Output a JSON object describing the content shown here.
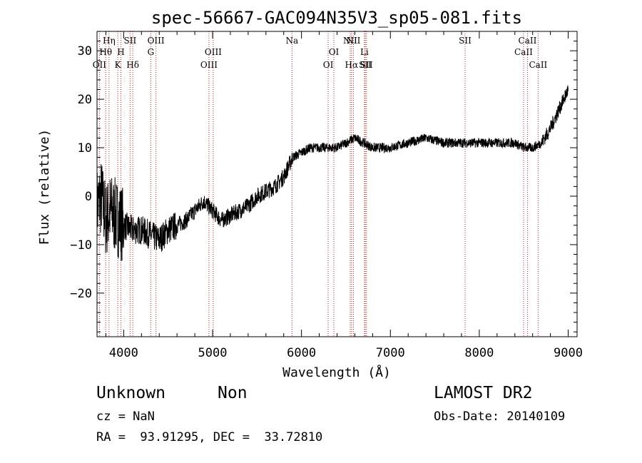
{
  "chart_data": {
    "type": "line",
    "title": "spec-56667-GAC094N35V3_sp05-081.fits",
    "xlabel": "Wavelength (Å)",
    "ylabel": "Flux (relative)",
    "xlim": [
      3700,
      9100
    ],
    "ylim": [
      -29,
      34
    ],
    "x_ticks": [
      4000,
      5000,
      6000,
      7000,
      8000,
      9000
    ],
    "y_ticks": [
      -20,
      -10,
      0,
      10,
      20,
      30
    ],
    "grid": false,
    "series": [
      {
        "color": "#000000",
        "continuum": [
          [
            3700,
            -2
          ],
          [
            3750,
            0
          ],
          [
            3800,
            -5
          ],
          [
            3850,
            -3
          ],
          [
            3900,
            -4
          ],
          [
            3950,
            -5
          ],
          [
            4000,
            -6
          ],
          [
            4100,
            -7
          ],
          [
            4200,
            -7
          ],
          [
            4300,
            -8
          ],
          [
            4400,
            -9
          ],
          [
            4500,
            -7
          ],
          [
            4600,
            -6
          ],
          [
            4700,
            -5
          ],
          [
            4800,
            -3
          ],
          [
            4900,
            -1
          ],
          [
            5000,
            -3
          ],
          [
            5100,
            -5
          ],
          [
            5200,
            -4
          ],
          [
            5300,
            -3
          ],
          [
            5400,
            -2
          ],
          [
            5500,
            0
          ],
          [
            5600,
            1
          ],
          [
            5700,
            2
          ],
          [
            5800,
            4
          ],
          [
            5850,
            6
          ],
          [
            5900,
            8
          ],
          [
            6000,
            9
          ],
          [
            6100,
            10
          ],
          [
            6200,
            10
          ],
          [
            6300,
            10
          ],
          [
            6400,
            10
          ],
          [
            6500,
            11
          ],
          [
            6600,
            12
          ],
          [
            6700,
            11
          ],
          [
            6800,
            10
          ],
          [
            6900,
            10
          ],
          [
            7000,
            10
          ],
          [
            7200,
            11
          ],
          [
            7400,
            12
          ],
          [
            7600,
            11
          ],
          [
            7800,
            11
          ],
          [
            8000,
            11
          ],
          [
            8200,
            11
          ],
          [
            8400,
            11
          ],
          [
            8500,
            10
          ],
          [
            8600,
            10
          ],
          [
            8700,
            11
          ],
          [
            8800,
            14
          ],
          [
            8900,
            18
          ],
          [
            8950,
            20
          ],
          [
            9000,
            22
          ]
        ]
      }
    ],
    "spectral_lines": [
      {
        "name": "OII",
        "wavelength": 3727,
        "row": 2
      },
      {
        "name": "Hη",
        "wavelength": 3835,
        "row": 0
      },
      {
        "name": "Hθ",
        "wavelength": 3798,
        "row": 1
      },
      {
        "name": "K",
        "wavelength": 3934,
        "row": 2
      },
      {
        "name": "H",
        "wavelength": 3969,
        "row": 1
      },
      {
        "name": "SII",
        "wavelength": 4072,
        "row": 0
      },
      {
        "name": "Hδ",
        "wavelength": 4102,
        "row": 2
      },
      {
        "name": "OIII",
        "wavelength": 4363,
        "row": 0
      },
      {
        "name": "G",
        "wavelength": 4305,
        "row": 1
      },
      {
        "name": "OIII",
        "wavelength": 4959,
        "row": 2
      },
      {
        "name": "OIII",
        "wavelength": 5007,
        "row": 1
      },
      {
        "name": "Na",
        "wavelength": 5893,
        "row": 0
      },
      {
        "name": "OI",
        "wavelength": 6300,
        "row": 2
      },
      {
        "name": "OI",
        "wavelength": 6364,
        "row": 1
      },
      {
        "name": "NII",
        "wavelength": 6548,
        "row": 0
      },
      {
        "name": "Hα",
        "wavelength": 6563,
        "row": 2
      },
      {
        "name": "NII",
        "wavelength": 6584,
        "row": 0
      },
      {
        "name": "Li",
        "wavelength": 6708,
        "row": 1
      },
      {
        "name": "SII",
        "wavelength": 6717,
        "row": 2
      },
      {
        "name": "SII",
        "wavelength": 6731,
        "row": 2
      },
      {
        "name": "SII",
        "wavelength": 7840,
        "row": 0
      },
      {
        "name": "CaII",
        "wavelength": 8498,
        "row": 1
      },
      {
        "name": "CaII",
        "wavelength": 8542,
        "row": 0
      },
      {
        "name": "CaII",
        "wavelength": 8662,
        "row": 2
      }
    ]
  },
  "info": {
    "class": "Unknown",
    "subclass": "Non",
    "cz": "cz = NaN",
    "radec": "RA =  93.91295, DEC =  33.72810",
    "survey": "LAMOST DR2",
    "obs_date": "Obs-Date: 20140109"
  }
}
